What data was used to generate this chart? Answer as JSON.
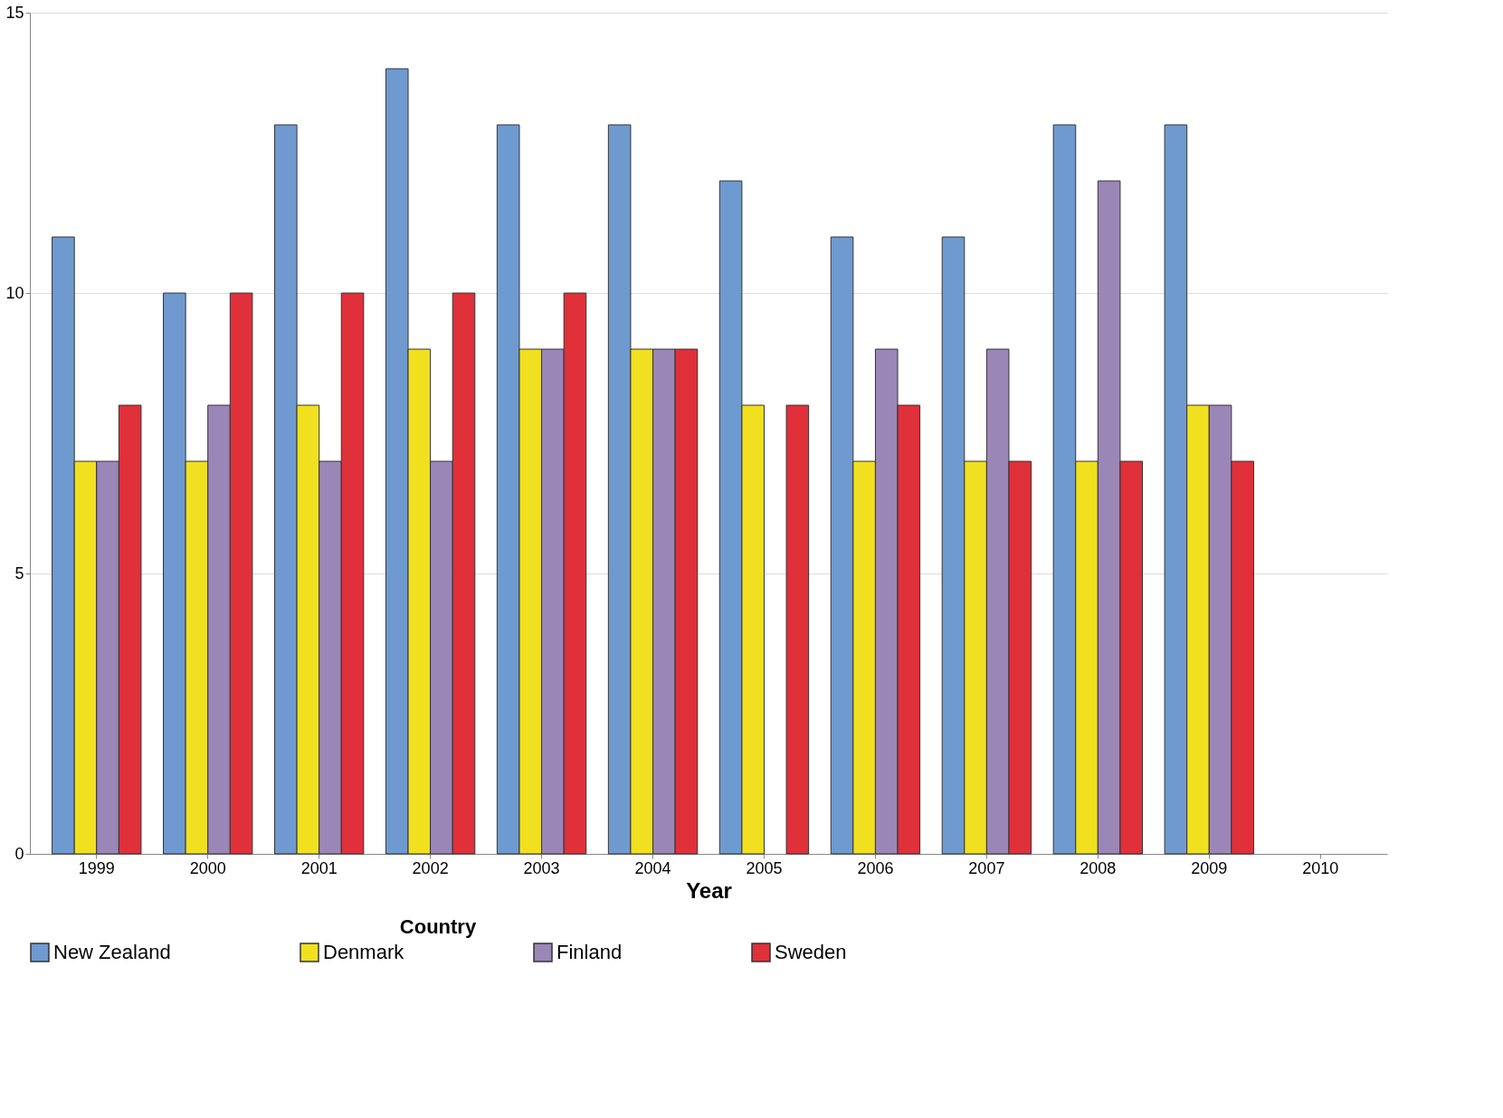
{
  "chart_data": {
    "type": "bar",
    "xlabel": "Year",
    "legend_title": "Country",
    "categories": [
      "1999",
      "2000",
      "2001",
      "2002",
      "2003",
      "2004",
      "2005",
      "2006",
      "2007",
      "2008",
      "2009",
      "2010"
    ],
    "series": [
      {
        "name": "New Zealand",
        "color": "#6f9ad0",
        "values": [
          11,
          10,
          13,
          14,
          13,
          13,
          12,
          11,
          11,
          13,
          13,
          null
        ]
      },
      {
        "name": "Denmark",
        "color": "#f0e020",
        "values": [
          7,
          7,
          8,
          9,
          9,
          9,
          8,
          7,
          7,
          7,
          8,
          null
        ]
      },
      {
        "name": "Finland",
        "color": "#9b86b8",
        "values": [
          7,
          8,
          7,
          7,
          9,
          9,
          null,
          9,
          9,
          12,
          8,
          null
        ]
      },
      {
        "name": "Sweden",
        "color": "#e0303a",
        "values": [
          8,
          10,
          10,
          10,
          10,
          9,
          8,
          8,
          7,
          7,
          7,
          null
        ]
      }
    ],
    "ylim": [
      0,
      15
    ],
    "yticks": [
      0,
      5,
      10,
      15
    ],
    "grid": "y",
    "legend": "bottom"
  }
}
